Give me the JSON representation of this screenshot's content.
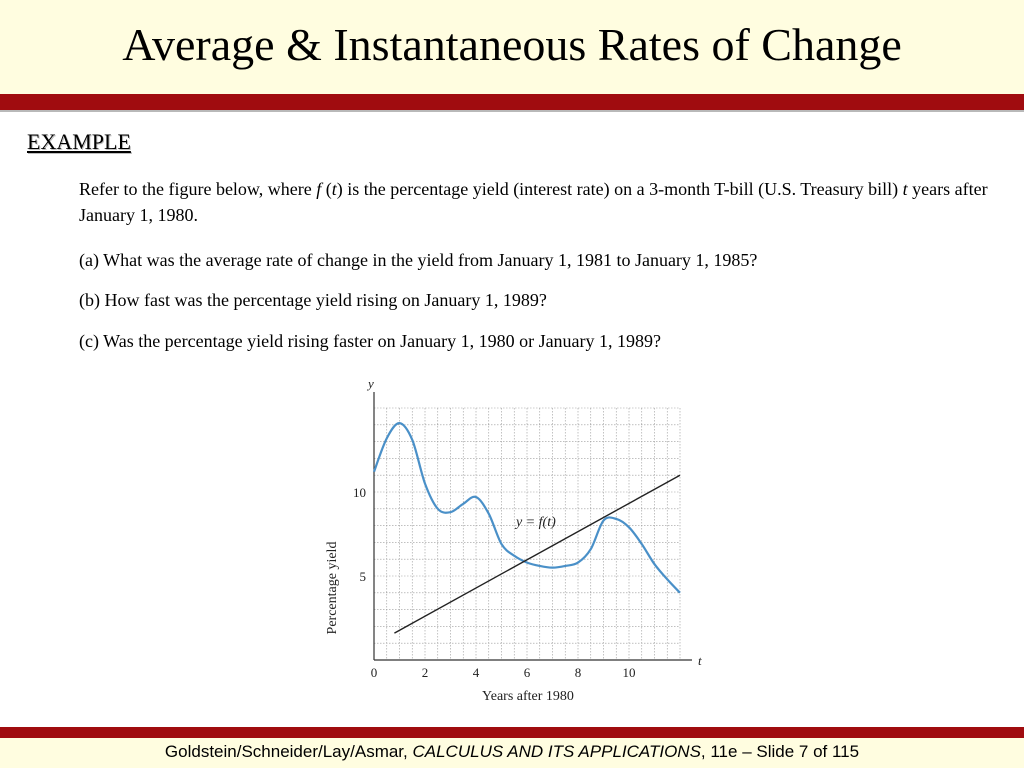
{
  "slide": {
    "title": "Average & Instantaneous Rates of Change",
    "heading": "EXAMPLE"
  },
  "problem": {
    "intro_a": "Refer to the figure below, where  ",
    "intro_f": "f",
    "intro_b": " (",
    "intro_t1": "t",
    "intro_c": ") is the percentage yield (interest rate) on a 3-month T-bill (U.S. Treasury bill) ",
    "intro_t2": "t",
    "intro_d": " years after January 1, 1980.",
    "part_a": "(a) What was the average rate of change in the yield from January 1, 1981 to January 1, 1985?",
    "part_b": "(b) How fast was the percentage yield rising on January 1, 1989?",
    "part_c": "(c) Was the percentage yield rising faster on January 1, 1980 or January 1, 1989?"
  },
  "chart_data": {
    "type": "line",
    "xlabel": "Years after 1980",
    "ylabel": "Percentage yield",
    "x_axis_symbol": "t",
    "y_axis_symbol": "y",
    "curve_label": "y = f(t)",
    "xlim": [
      0,
      12
    ],
    "ylim": [
      0,
      15
    ],
    "x_ticks": [
      0,
      2,
      4,
      6,
      8,
      10
    ],
    "y_ticks": [
      5,
      10
    ],
    "grid": true,
    "colors": {
      "curve": "#4a90c8",
      "tangent": "#222222",
      "grid": "#9a9a9a"
    },
    "series": [
      {
        "values_x": [
          0,
          0.5,
          1,
          1.5,
          2,
          2.5,
          3,
          3.5,
          4,
          4.5,
          5,
          5.5,
          6,
          6.5,
          7,
          7.5,
          8,
          8.5,
          9,
          9.5,
          10,
          10.5,
          11,
          11.5,
          12
        ],
        "values_y": [
          11.2,
          13.2,
          14.1,
          13.1,
          10.5,
          9.0,
          8.8,
          9.3,
          9.7,
          8.7,
          6.9,
          6.2,
          5.8,
          5.6,
          5.5,
          5.6,
          5.8,
          6.6,
          8.3,
          8.4,
          7.9,
          6.9,
          5.7,
          4.8,
          4.0
        ]
      },
      {
        "values_x": [
          0.8,
          12
        ],
        "values_y": [
          1.6,
          11.0
        ]
      }
    ]
  },
  "footer": {
    "authors": "Goldstein/Schneider/Lay/Asmar, ",
    "book": "CALCULUS AND ITS APPLICATIONS",
    "rest": ", 11e – Slide 7 of 115"
  }
}
